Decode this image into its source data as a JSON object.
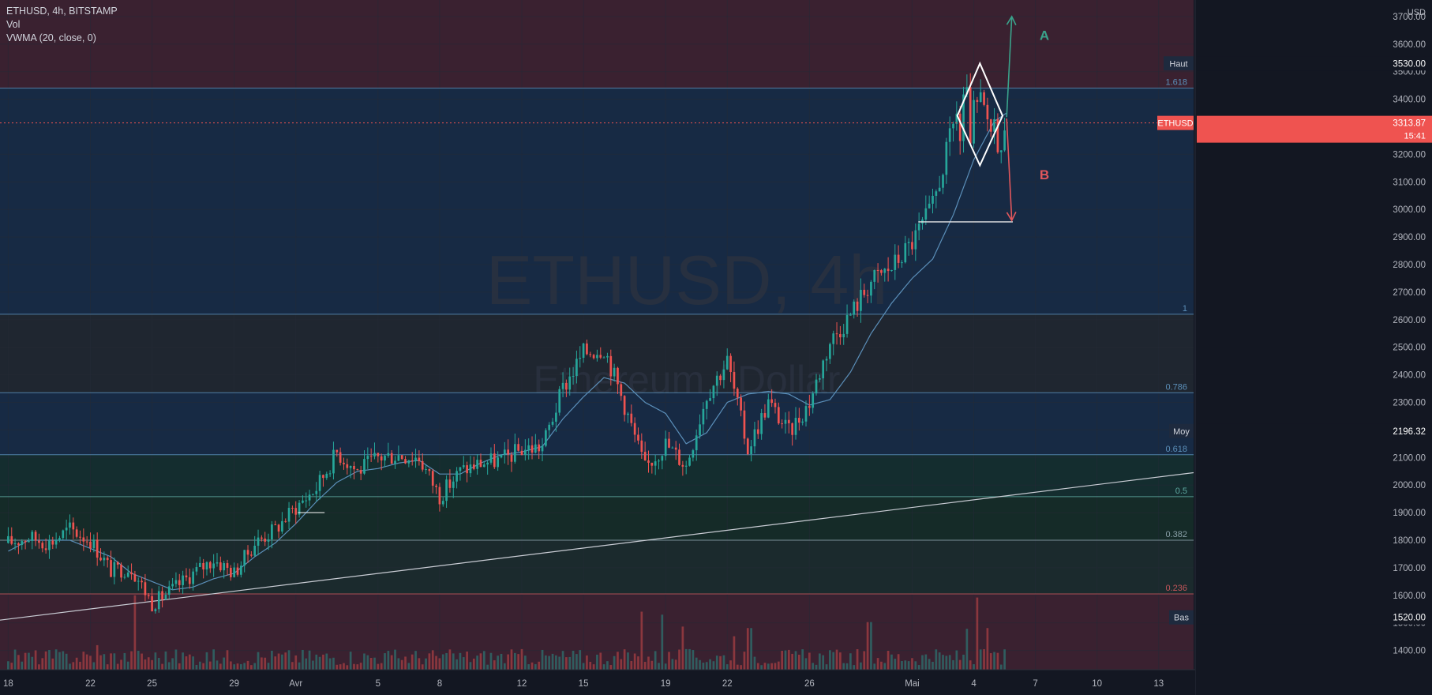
{
  "legend": {
    "symbol_line": "ETHUSD, 4h, BITSTAMP",
    "volume_label": "Vol",
    "indicator_label": "VWMA (20, close, 0)"
  },
  "watermark": {
    "symbol": "ETHUSD, 4h",
    "name": "Ethereum / Dollar"
  },
  "chart_data": {
    "type": "candlestick",
    "symbol": "ETHUSD",
    "timeframe": "4h",
    "exchange": "BITSTAMP",
    "currency": "USD",
    "ylim": [
      1330,
      3760
    ],
    "y_ticks": [
      1400,
      1500,
      1600,
      1700,
      1800,
      1900,
      2000,
      2100,
      2200,
      2300,
      2400,
      2500,
      2600,
      2700,
      2800,
      2900,
      3000,
      3100,
      3200,
      3300,
      3400,
      3500,
      3600,
      3700
    ],
    "y_tick_labels": [
      "1400.00",
      "1500.00",
      "1600.00",
      "1700.00",
      "1800.00",
      "1900.00",
      "2000.00",
      "2100.00",
      "2200.00",
      "2300.00",
      "2400.00",
      "2500.00",
      "2600.00",
      "2700.00",
      "2800.00",
      "2900.00",
      "3000.00",
      "3100.00",
      "3200.00",
      "3300.00",
      "3400.00",
      "3500.00",
      "3600.00",
      "3700.00"
    ],
    "x_range_days": [
      -0.4,
      57.7
    ],
    "x_ticks": [
      {
        "label": "18",
        "day": 0
      },
      {
        "label": "22",
        "day": 4
      },
      {
        "label": "25",
        "day": 7
      },
      {
        "label": "29",
        "day": 11
      },
      {
        "label": "Avr",
        "day": 14
      },
      {
        "label": "5",
        "day": 18
      },
      {
        "label": "8",
        "day": 21
      },
      {
        "label": "12",
        "day": 25
      },
      {
        "label": "15",
        "day": 28
      },
      {
        "label": "19",
        "day": 32
      },
      {
        "label": "22",
        "day": 35
      },
      {
        "label": "26",
        "day": 39
      },
      {
        "label": "Mai",
        "day": 44
      },
      {
        "label": "4",
        "day": 47
      },
      {
        "label": "7",
        "day": 50
      },
      {
        "label": "10",
        "day": 53
      },
      {
        "label": "13",
        "day": 56
      }
    ],
    "price_path": [
      [
        0,
        1790
      ],
      [
        1,
        1810
      ],
      [
        2,
        1790
      ],
      [
        3,
        1840
      ],
      [
        4,
        1800
      ],
      [
        5,
        1690
      ],
      [
        6,
        1700
      ],
      [
        7,
        1570
      ],
      [
        8,
        1620
      ],
      [
        9,
        1680
      ],
      [
        10,
        1730
      ],
      [
        11,
        1680
      ],
      [
        12,
        1790
      ],
      [
        13,
        1840
      ],
      [
        14,
        1920
      ],
      [
        15,
        1990
      ],
      [
        16,
        2120
      ],
      [
        17,
        2050
      ],
      [
        18,
        2100
      ],
      [
        19,
        2110
      ],
      [
        20,
        2100
      ],
      [
        21,
        1960
      ],
      [
        22,
        2050
      ],
      [
        23,
        2080
      ],
      [
        24,
        2090
      ],
      [
        25,
        2130
      ],
      [
        26,
        2140
      ],
      [
        27,
        2350
      ],
      [
        28,
        2480
      ],
      [
        29,
        2500
      ],
      [
        30,
        2290
      ],
      [
        31,
        2060
      ],
      [
        32,
        2150
      ],
      [
        33,
        2070
      ],
      [
        34,
        2330
      ],
      [
        35,
        2450
      ],
      [
        36,
        2130
      ],
      [
        37,
        2300
      ],
      [
        38,
        2190
      ],
      [
        39,
        2300
      ],
      [
        40,
        2520
      ],
      [
        41,
        2620
      ],
      [
        42,
        2740
      ],
      [
        43,
        2790
      ],
      [
        44,
        2880
      ],
      [
        45,
        3010
      ],
      [
        46,
        3300
      ],
      [
        47,
        3350
      ],
      [
        48,
        3320
      ],
      [
        48.6,
        3314
      ]
    ],
    "vwma_path": [
      [
        0,
        1760
      ],
      [
        1,
        1800
      ],
      [
        3,
        1800
      ],
      [
        5,
        1740
      ],
      [
        6,
        1680
      ],
      [
        7,
        1650
      ],
      [
        8,
        1620
      ],
      [
        9,
        1630
      ],
      [
        10,
        1660
      ],
      [
        11,
        1680
      ],
      [
        12,
        1740
      ],
      [
        13,
        1790
      ],
      [
        14,
        1860
      ],
      [
        15,
        1940
      ],
      [
        16,
        2010
      ],
      [
        17,
        2050
      ],
      [
        18,
        2060
      ],
      [
        19,
        2080
      ],
      [
        20,
        2090
      ],
      [
        21,
        2040
      ],
      [
        22,
        2040
      ],
      [
        23,
        2080
      ],
      [
        24,
        2110
      ],
      [
        25,
        2120
      ],
      [
        26,
        2140
      ],
      [
        27,
        2240
      ],
      [
        28,
        2320
      ],
      [
        29,
        2390
      ],
      [
        30,
        2370
      ],
      [
        31,
        2300
      ],
      [
        32,
        2260
      ],
      [
        33,
        2150
      ],
      [
        34,
        2190
      ],
      [
        35,
        2300
      ],
      [
        36,
        2330
      ],
      [
        37,
        2340
      ],
      [
        38,
        2330
      ],
      [
        39,
        2290
      ],
      [
        40,
        2310
      ],
      [
        41,
        2410
      ],
      [
        42,
        2550
      ],
      [
        43,
        2660
      ],
      [
        44,
        2750
      ],
      [
        45,
        2820
      ],
      [
        46,
        2980
      ],
      [
        47,
        3180
      ],
      [
        48,
        3320
      ],
      [
        48.6,
        3350
      ]
    ],
    "volume_max_height_price_units": 270,
    "volume_spikes": [
      {
        "day": 6.2,
        "rel": 1.0
      },
      {
        "day": 4.3,
        "rel": 0.33
      },
      {
        "day": 30.8,
        "rel": 0.78
      },
      {
        "day": 31.8,
        "rel": 0.74
      },
      {
        "day": 32.9,
        "rel": 0.58
      },
      {
        "day": 41.9,
        "rel": 0.64
      },
      {
        "day": 36.1,
        "rel": 0.56
      },
      {
        "day": 35.3,
        "rel": 0.45
      },
      {
        "day": 47.2,
        "rel": 0.97
      },
      {
        "day": 46.6,
        "rel": 0.55
      },
      {
        "day": 47.6,
        "rel": 0.56
      }
    ],
    "horizontal_levels": [
      {
        "label": "1.618",
        "price": 3440,
        "color": "#5b8fb9"
      },
      {
        "label": "1",
        "price": 2620,
        "color": "#5b8fb9"
      },
      {
        "label": "0.786",
        "price": 2335,
        "color": "#5b8fb9"
      },
      {
        "label": "0.618",
        "price": 2110,
        "color": "#5b8fb9"
      },
      {
        "label": "0.5",
        "price": 1958,
        "color": "#5ea8a0"
      },
      {
        "label": "0.382",
        "price": 1800,
        "color": "#8aa0a8"
      },
      {
        "label": "0.236",
        "price": 1605,
        "color": "#c2555a"
      }
    ],
    "zones": [
      {
        "from": 3440,
        "to": 3760,
        "color": "#3a2130"
      },
      {
        "from": 2620,
        "to": 3440,
        "color": "#172a44"
      },
      {
        "from": 2335,
        "to": 2620,
        "color": "#1f2630"
      },
      {
        "from": 2110,
        "to": 2335,
        "color": "#172a44"
      },
      {
        "from": 1958,
        "to": 2110,
        "color": "#142d2f"
      },
      {
        "from": 1800,
        "to": 1958,
        "color": "#152b28"
      },
      {
        "from": 1605,
        "to": 1800,
        "color": "#1b2a2d"
      },
      {
        "from": 1330,
        "to": 1605,
        "color": "#3a2130"
      }
    ],
    "trendline": {
      "start": [
        -0.4,
        1510
      ],
      "end": [
        57.7,
        2045
      ]
    },
    "current_price_line": 3314,
    "support_line": {
      "from_day": 44.3,
      "to_day": 48.9,
      "price": 2955
    },
    "small_support_line": {
      "from_day": 14.1,
      "to_day": 15.4,
      "price": 1900
    },
    "diamond": {
      "top": [
        47.3,
        3530
      ],
      "right": [
        48.4,
        3340
      ],
      "bottom": [
        47.3,
        3160
      ],
      "left": [
        46.2,
        3340
      ]
    },
    "arrow_A": {
      "from": [
        48.6,
        3335
      ],
      "to": [
        48.85,
        3700
      ],
      "label": "A",
      "color": "#3aa38b"
    },
    "arrow_B": {
      "from": [
        48.6,
        3330
      ],
      "to": [
        48.85,
        2960
      ],
      "label": "B",
      "color": "#e2575c"
    },
    "badges": {
      "haut": {
        "label": "Haut",
        "value": "3530.00",
        "price": 3530
      },
      "current": {
        "label": "ETHUSD",
        "value": "3313.87",
        "countdown": "15:41",
        "price": 3314
      },
      "moy": {
        "label": "Moy",
        "value": "2196.32",
        "price": 2196
      },
      "bas": {
        "label": "Bas",
        "value": "1520.00",
        "price": 1520
      }
    },
    "colors": {
      "up": "#26a69a",
      "down": "#ef5350",
      "vwma": "#5b8fb9",
      "background": "#131722",
      "axis_text": "#b2b5be",
      "grid": "#252a36"
    }
  }
}
